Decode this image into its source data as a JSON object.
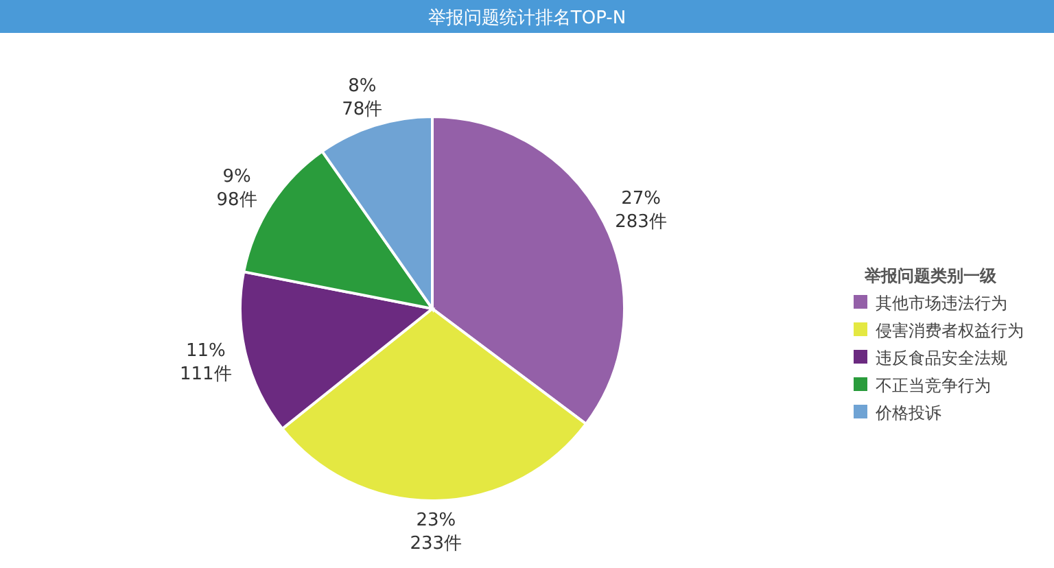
{
  "chart_data": {
    "type": "pie",
    "title": "举报问题统计排名TOP-N",
    "legend_title": "举报问题类别一级",
    "legend": "right",
    "categories": [
      "其他市场违法行为",
      "侵害消费者权益行为",
      "违反食品安全法规",
      "不正当竞争行为",
      "价格投诉"
    ],
    "values": [
      283,
      233,
      111,
      98,
      78
    ],
    "colors": [
      "#9460a8",
      "#e4e842",
      "#6b2a80",
      "#2a9c3c",
      "#6fa3d4"
    ],
    "value_labels": [
      "27%\n283件",
      "23%\n233件",
      "11%\n111件",
      "9%\n98件",
      "8%\n78件"
    ]
  }
}
